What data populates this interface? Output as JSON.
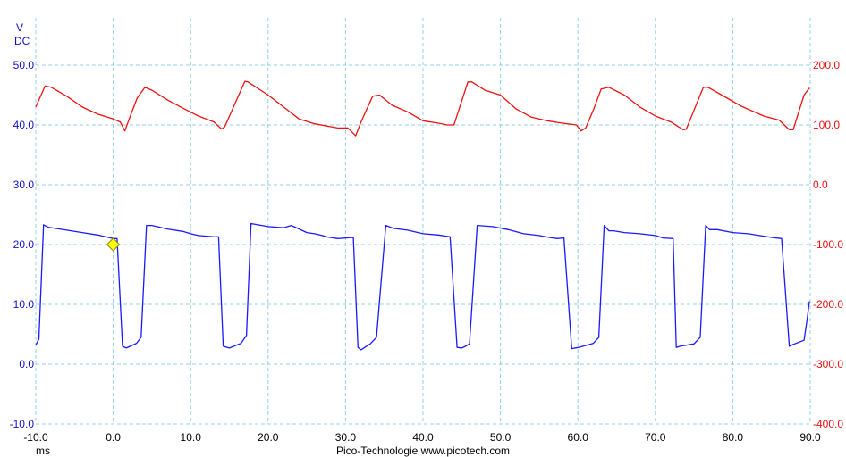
{
  "chart_data": {
    "type": "line",
    "title": "",
    "left_axis": {
      "unit": "V",
      "coupling": "DC",
      "ylim": [
        -10,
        50
      ],
      "ticks": [
        -10,
        0,
        10,
        20,
        30,
        40,
        50
      ],
      "color": "#1010cc"
    },
    "right_axis": {
      "ylim": [
        -400,
        200
      ],
      "ticks": [
        -400,
        -300,
        -200,
        -100,
        0,
        100,
        200
      ],
      "color": "#ee1111"
    },
    "x_axis": {
      "unit": "ms",
      "xlim": [
        -10,
        90
      ],
      "ticks": [
        -10,
        0,
        10,
        20,
        30,
        40,
        50,
        60,
        70,
        80,
        90
      ]
    },
    "grid": true,
    "trigger_marker": {
      "x": 0.0,
      "y": 20.0,
      "color": "#ffff00"
    },
    "series": [
      {
        "axis": "left",
        "color": "#1a1aff",
        "x": [
          -10,
          -9.6,
          -9.0,
          -8.4,
          -6,
          -4,
          -2,
          0,
          0.5,
          1.2,
          1.7,
          3.0,
          3.6,
          4.3,
          5,
          7,
          9,
          10,
          11,
          13,
          13.6,
          14.2,
          15.0,
          16.5,
          17.2,
          17.8,
          20,
          22,
          23,
          25,
          26,
          27,
          27.5,
          28,
          29,
          31,
          31.6,
          32,
          32.7,
          33.2,
          34,
          35.2,
          36.2,
          38,
          40,
          42,
          43,
          43.5,
          44.4,
          45,
          45.5,
          46,
          47,
          49,
          51,
          53,
          55,
          56.3,
          57.3,
          58.2,
          59.2,
          60.1,
          62.0,
          62.7,
          63.4,
          64,
          64.6,
          66,
          68,
          70,
          71,
          72.3,
          72.7,
          73.2,
          75,
          75.8,
          76.5,
          77,
          78,
          80,
          82,
          85,
          86.3,
          87.3,
          87.8,
          89.2,
          89.6,
          89.9
        ],
        "y": [
          3.2,
          4.2,
          23.3,
          22.9,
          22.4,
          22.0,
          21.6,
          21.0,
          21.0,
          3.0,
          2.7,
          3.5,
          4.5,
          23.2,
          23.2,
          22.6,
          22.2,
          21.8,
          21.5,
          21.3,
          21.3,
          3.0,
          2.7,
          3.5,
          4.8,
          23.5,
          23.0,
          22.8,
          23.2,
          22.0,
          21.8,
          21.5,
          21.3,
          21.2,
          21.0,
          21.2,
          2.8,
          2.4,
          3.0,
          3.4,
          4.5,
          23.2,
          22.7,
          22.4,
          21.8,
          21.6,
          21.4,
          21.3,
          2.8,
          2.7,
          3.0,
          3.4,
          23.2,
          23.0,
          22.5,
          21.8,
          21.5,
          21.2,
          21.0,
          21.1,
          2.6,
          2.8,
          3.5,
          4.5,
          23.2,
          22.3,
          22.3,
          22.0,
          21.8,
          21.5,
          21.1,
          21.0,
          2.8,
          3.0,
          3.4,
          4.5,
          23.2,
          22.5,
          22.5,
          22.0,
          21.8,
          21.2,
          21.0,
          3.0,
          3.3,
          4.0,
          7.5,
          10.5
        ]
      },
      {
        "axis": "right",
        "color": "#ee1111",
        "x": [
          -10,
          -8.8,
          -8,
          -6,
          -4,
          -2,
          0,
          0.9,
          1.5,
          2.3,
          3.1,
          4.1,
          5,
          7,
          9,
          11,
          13,
          14.0,
          14.4,
          17.0,
          17.4,
          20,
          22,
          24,
          26,
          29,
          30.3,
          31.3,
          32,
          33.5,
          34.4,
          36,
          38,
          40,
          42,
          43.1,
          44.0,
          45.8,
          46.3,
          48,
          50,
          52,
          54,
          56,
          58,
          59.8,
          60.4,
          61,
          62,
          63.0,
          64,
          66,
          68,
          70,
          72,
          73.6,
          74.0,
          76.2,
          76.8,
          79,
          81,
          84,
          86,
          87.3,
          87.8,
          89.2,
          89.9
        ],
        "y": [
          130,
          165,
          163,
          148,
          130,
          118,
          110,
          105,
          90,
          118,
          145,
          163,
          158,
          142,
          128,
          115,
          105,
          93,
          97,
          173,
          172,
          150,
          130,
          110,
          102,
          95,
          95,
          82,
          105,
          148,
          150,
          133,
          122,
          107,
          103,
          100,
          100,
          172,
          172,
          158,
          150,
          127,
          113,
          107,
          103,
          100,
          90,
          95,
          125,
          160,
          163,
          150,
          130,
          115,
          105,
          92,
          93,
          163,
          163,
          147,
          132,
          115,
          108,
          92,
          92,
          150,
          162
        ]
      }
    ]
  },
  "footer": {
    "x_unit": "ms",
    "credit": "Pico-Technologie   www.picotech.com"
  }
}
